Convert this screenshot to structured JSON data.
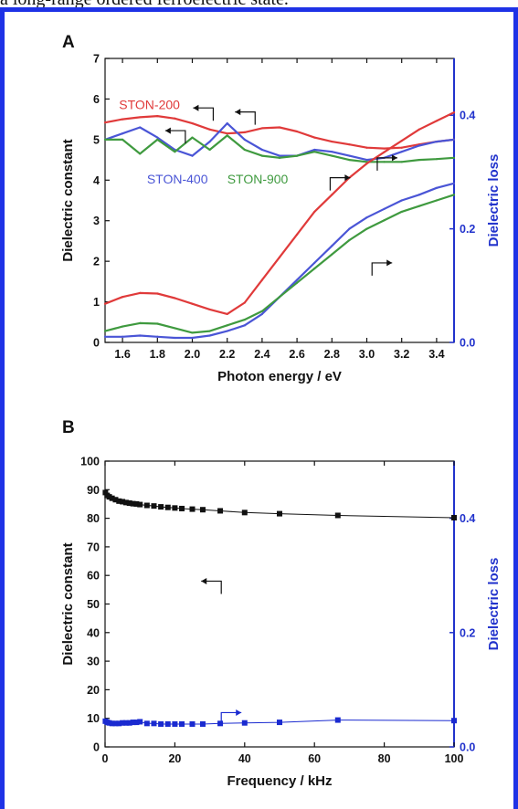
{
  "caption": {
    "text": "a long-range ordered ferroelectric state."
  },
  "colors": {
    "frame": "#1e32e6",
    "right_axis": "#2233cc",
    "ston200": "#e03a3a",
    "ston400": "#4a55d6",
    "ston900": "#3f9a3f",
    "panel_b_black": "#111111",
    "panel_b_blue": "#1a2ad0"
  },
  "chart_data": [
    {
      "panel": "A",
      "type": "line",
      "xlabel": "Photon energy / eV",
      "ylabel": "Dielectric constant",
      "y2label": "Dielectric loss",
      "xlim": [
        1.5,
        3.5
      ],
      "ylim": [
        0,
        7
      ],
      "y2lim": [
        0,
        0.5
      ],
      "xticks": [
        "1.6",
        "1.8",
        "2.0",
        "2.2",
        "2.4",
        "2.6",
        "2.8",
        "3.0",
        "3.2",
        "3.4"
      ],
      "yticks": [
        "0",
        "1",
        "2",
        "3",
        "4",
        "5",
        "6",
        "7"
      ],
      "y2ticks": [
        "0.0",
        "0.2",
        "0.4"
      ],
      "grid": false,
      "x": [
        1.5,
        1.6,
        1.7,
        1.8,
        1.9,
        2.0,
        2.1,
        2.2,
        2.3,
        2.4,
        2.5,
        2.6,
        2.7,
        2.8,
        2.9,
        3.0,
        3.1,
        3.2,
        3.3,
        3.4,
        3.5
      ],
      "series": [
        {
          "name": "STON-200",
          "axis": "left",
          "color_key": "ston200",
          "values": [
            5.42,
            5.5,
            5.55,
            5.58,
            5.52,
            5.4,
            5.25,
            5.15,
            5.18,
            5.28,
            5.3,
            5.2,
            5.05,
            4.95,
            4.88,
            4.8,
            4.78,
            4.8,
            4.88,
            4.95,
            5.0
          ]
        },
        {
          "name": "STON-400",
          "axis": "left",
          "color_key": "ston400",
          "values": [
            5.0,
            5.15,
            5.3,
            5.05,
            4.75,
            4.6,
            4.95,
            5.4,
            5.0,
            4.75,
            4.6,
            4.6,
            4.75,
            4.7,
            4.6,
            4.5,
            4.55,
            4.7,
            4.85,
            4.95,
            5.0
          ]
        },
        {
          "name": "STON-900",
          "axis": "left",
          "color_key": "ston900",
          "values": [
            5.0,
            5.0,
            4.65,
            5.0,
            4.7,
            5.05,
            4.75,
            5.1,
            4.75,
            4.6,
            4.55,
            4.6,
            4.7,
            4.6,
            4.5,
            4.45,
            4.45,
            4.45,
            4.5,
            4.52,
            4.55
          ]
        },
        {
          "name": "STON-200",
          "axis": "right",
          "color_key": "ston200",
          "values": [
            0.068,
            0.08,
            0.087,
            0.086,
            0.078,
            0.068,
            0.058,
            0.05,
            0.07,
            0.11,
            0.15,
            0.19,
            0.23,
            0.26,
            0.29,
            0.315,
            0.335,
            0.355,
            0.375,
            0.39,
            0.405
          ]
        },
        {
          "name": "STON-400",
          "axis": "right",
          "color_key": "ston400",
          "values": [
            0.01,
            0.01,
            0.012,
            0.01,
            0.008,
            0.008,
            0.012,
            0.02,
            0.03,
            0.05,
            0.08,
            0.11,
            0.14,
            0.17,
            0.2,
            0.22,
            0.235,
            0.25,
            0.26,
            0.272,
            0.28
          ]
        },
        {
          "name": "STON-900",
          "axis": "right",
          "color_key": "ston900",
          "values": [
            0.02,
            0.028,
            0.034,
            0.033,
            0.025,
            0.017,
            0.02,
            0.03,
            0.04,
            0.055,
            0.08,
            0.105,
            0.13,
            0.155,
            0.18,
            0.2,
            0.215,
            0.23,
            0.24,
            0.25,
            0.26
          ]
        }
      ],
      "labels": [
        {
          "text": "STON-200",
          "x": 1.58,
          "y": 5.75,
          "color_key": "ston200"
        },
        {
          "text": "STON-400",
          "x": 1.74,
          "y": 3.92,
          "color_key": "ston400"
        },
        {
          "text": "STON-900",
          "x": 2.2,
          "y": 3.92,
          "color_key": "ston900"
        }
      ],
      "arrows": [
        {
          "x": 2.12,
          "y": 5.78,
          "dir": "left"
        },
        {
          "x": 2.36,
          "y": 5.68,
          "dir": "left"
        },
        {
          "x": 1.96,
          "y": 5.22,
          "dir": "left"
        },
        {
          "x": 2.79,
          "y": 0.29,
          "dir": "right"
        },
        {
          "x": 3.03,
          "y": 0.14,
          "dir": "right"
        },
        {
          "x": 3.06,
          "y": 0.325,
          "dir": "right"
        }
      ]
    },
    {
      "panel": "B",
      "type": "scatter",
      "xlabel": "Frequency / kHz",
      "ylabel": "Dielectric constant",
      "y2label": "Dielectric loss",
      "xlim": [
        0,
        100
      ],
      "ylim": [
        0,
        100
      ],
      "y2lim": [
        0,
        0.5
      ],
      "xticks": [
        "0",
        "20",
        "40",
        "60",
        "80",
        "100"
      ],
      "yticks": [
        "0",
        "10",
        "20",
        "30",
        "40",
        "50",
        "60",
        "70",
        "80",
        "90",
        "100"
      ],
      "y2ticks": [
        "0.0",
        "0.2",
        "0.4"
      ],
      "grid": false,
      "series": [
        {
          "name": "",
          "axis": "left",
          "color_key": "panel_b_black",
          "x": [
            0.1,
            0.6,
            1.2,
            2,
            3,
            4,
            5,
            6,
            7,
            8,
            9,
            10,
            12,
            14,
            16,
            18,
            20,
            22,
            25,
            28,
            33,
            40,
            50,
            66.7,
            100
          ],
          "values": [
            89,
            88,
            87.5,
            87,
            86.5,
            86,
            85.8,
            85.5,
            85.3,
            85.1,
            85,
            84.8,
            84.5,
            84.3,
            84,
            83.8,
            83.6,
            83.4,
            83.2,
            83,
            82.6,
            82,
            81.6,
            81,
            80.2
          ]
        },
        {
          "name": "",
          "axis": "right",
          "color_key": "panel_b_blue",
          "x": [
            0.1,
            0.6,
            1.2,
            2,
            3,
            4,
            5,
            6,
            7,
            8,
            9,
            10,
            12,
            14,
            16,
            18,
            20,
            22,
            25,
            28,
            33,
            40,
            50,
            66.7,
            100
          ],
          "values": [
            0.045,
            0.043,
            0.042,
            0.041,
            0.041,
            0.041,
            0.042,
            0.042,
            0.042,
            0.043,
            0.043,
            0.044,
            0.041,
            0.041,
            0.04,
            0.04,
            0.04,
            0.04,
            0.04,
            0.04,
            0.041,
            0.042,
            0.043,
            0.047,
            0.046
          ]
        }
      ],
      "arrows": [
        {
          "x": 33.3,
          "y": 0.29,
          "dir": "left"
        },
        {
          "x": 33.3,
          "y": 0.06,
          "dir": "right"
        }
      ]
    }
  ]
}
